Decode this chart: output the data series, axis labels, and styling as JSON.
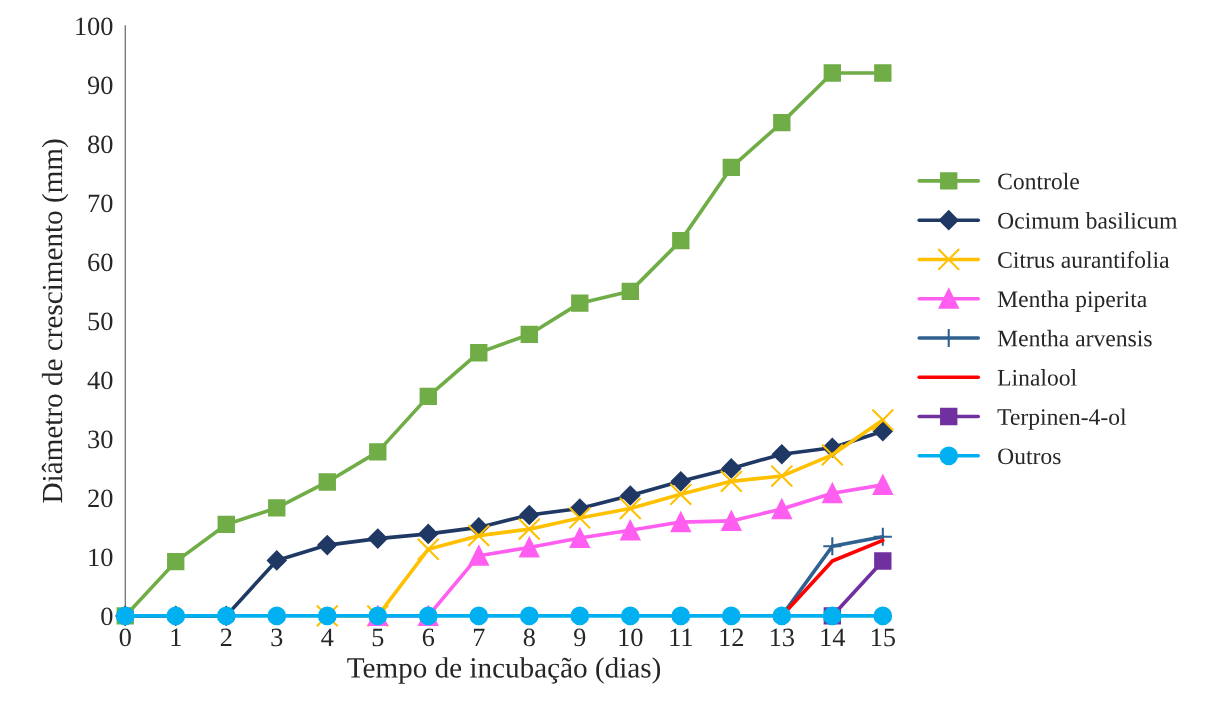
{
  "chart_data": {
    "type": "line",
    "xlabel": "Tempo de incubação (dias)",
    "ylabel": "Diâmetro de crescimento (mm)",
    "categories": [
      "0",
      "1",
      "2",
      "3",
      "4",
      "5",
      "6",
      "7",
      "8",
      "9",
      "10",
      "11",
      "12",
      "13",
      "14",
      "15"
    ],
    "ylim": [
      0,
      100
    ],
    "yticks": [
      0,
      10,
      20,
      30,
      40,
      50,
      60,
      70,
      80,
      90,
      100
    ],
    "grid": false,
    "legend": "right",
    "series": [
      {
        "name": "Controle",
        "color": "#70ad47",
        "marker": "square",
        "values": [
          0,
          9.2,
          15.5,
          18.3,
          22.7,
          27.8,
          37.2,
          44.6,
          47.7,
          53,
          55,
          63.6,
          76,
          83.6,
          92,
          92
        ]
      },
      {
        "name": "Ocimum basilicum",
        "color": "#1f3864",
        "marker": "diamond",
        "values": [
          0,
          0,
          0,
          9.4,
          12,
          13.1,
          13.9,
          15,
          17.1,
          18.2,
          20.4,
          22.8,
          25,
          27.4,
          28.5,
          31.3
        ]
      },
      {
        "name": "Citrus aurantifolia",
        "color": "#ffc000",
        "marker": "cross",
        "values": [
          null,
          null,
          null,
          null,
          0,
          0,
          11.3,
          13.6,
          14.7,
          16.6,
          18.2,
          20.6,
          22.8,
          23.7,
          27.3,
          33.2
        ]
      },
      {
        "name": "Mentha piperita",
        "color": "#ff5ef0",
        "marker": "triangle",
        "values": [
          null,
          null,
          null,
          null,
          null,
          0,
          0,
          10.2,
          11.6,
          13.2,
          14.5,
          15.9,
          16.1,
          18.1,
          20.8,
          22.2
        ]
      },
      {
        "name": "Mentha arvensis",
        "color": "#2e6090",
        "marker": "plus",
        "values": [
          null,
          null,
          null,
          null,
          null,
          null,
          null,
          null,
          null,
          null,
          null,
          null,
          null,
          0,
          11.8,
          13.4
        ]
      },
      {
        "name": "Linalool",
        "color": "#ff0000",
        "marker": "none",
        "values": [
          null,
          null,
          null,
          null,
          null,
          null,
          null,
          null,
          null,
          null,
          null,
          null,
          null,
          0,
          9.3,
          12.8
        ]
      },
      {
        "name": "Terpinen-4-ol",
        "color": "#7030a0",
        "marker": "square",
        "values": [
          null,
          null,
          null,
          null,
          null,
          null,
          null,
          null,
          null,
          null,
          null,
          null,
          null,
          null,
          0,
          9.3
        ]
      },
      {
        "name": "Outros",
        "color": "#00b0f0",
        "marker": "circle",
        "values": [
          0,
          0,
          0,
          0,
          0,
          0,
          0,
          0,
          0,
          0,
          0,
          0,
          0,
          0,
          0,
          0
        ]
      }
    ]
  }
}
